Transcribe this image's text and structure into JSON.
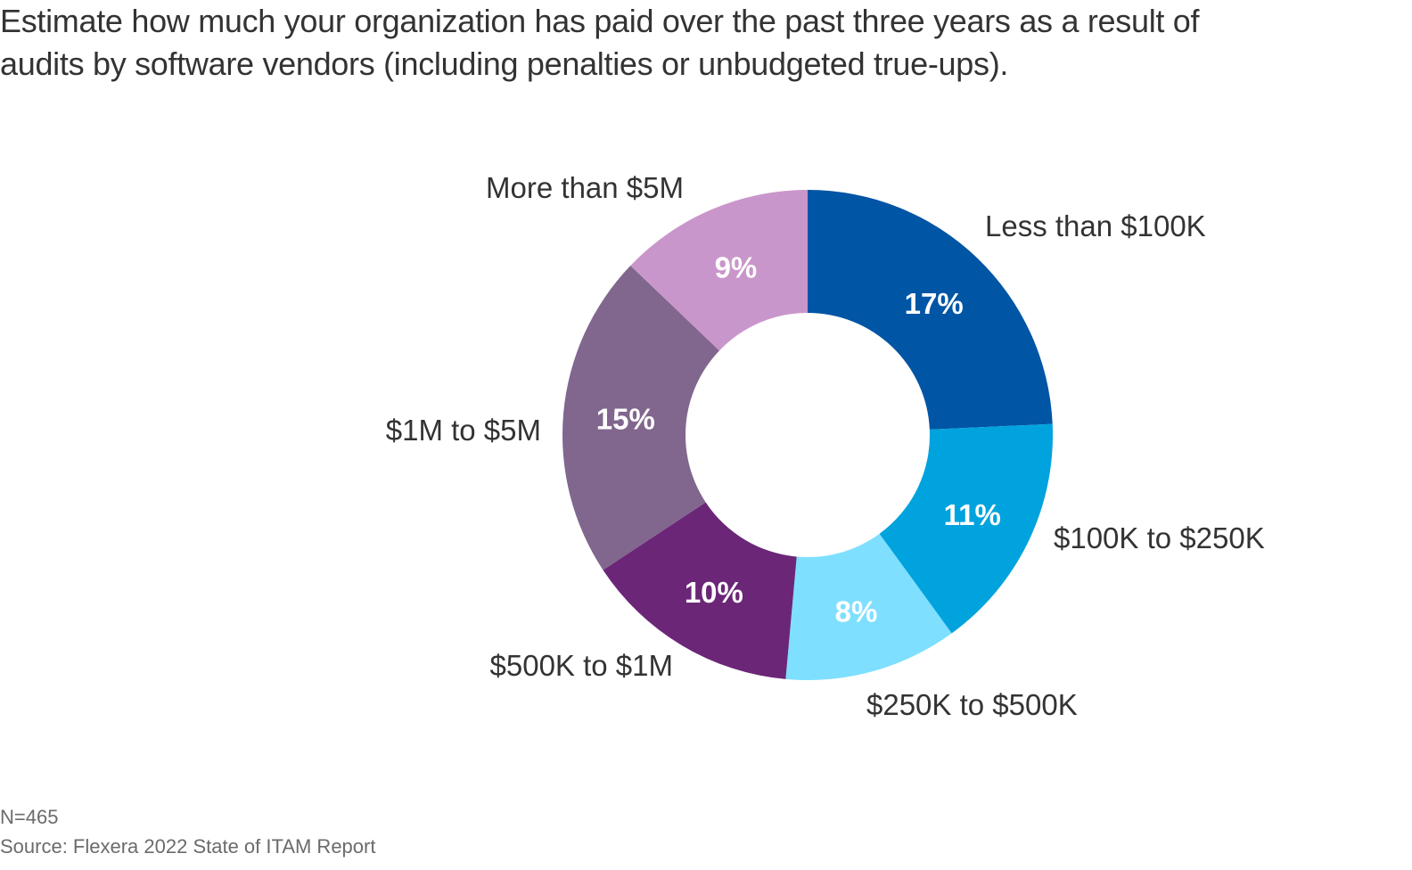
{
  "chart_data": {
    "type": "pie",
    "subtype": "donut",
    "title_lines": [
      "Estimate how much your organization has paid over the past three years as a result of",
      "audits by software vendors (including penalties or unbudgeted true-ups)."
    ],
    "categories": [
      "Less than $100K",
      "$100K to $250K",
      "$250K to $500K",
      "$500K to $1M",
      "$1M to $5M",
      "More than $5M"
    ],
    "values": [
      17,
      11,
      8,
      10,
      15,
      9
    ],
    "value_labels": [
      "17%",
      "11%",
      "8%",
      "10%",
      "15%",
      "9%"
    ],
    "colors": [
      "#0055A4",
      "#00A3DD",
      "#7FDFFF",
      "#6B2677",
      "#81668E",
      "#C996CB"
    ],
    "value_label_color": "#FFFFFF",
    "legend": "none (direct labels)"
  },
  "footnote": {
    "n": "N=465",
    "source": "Source: Flexera 2022 State of ITAM Report"
  }
}
